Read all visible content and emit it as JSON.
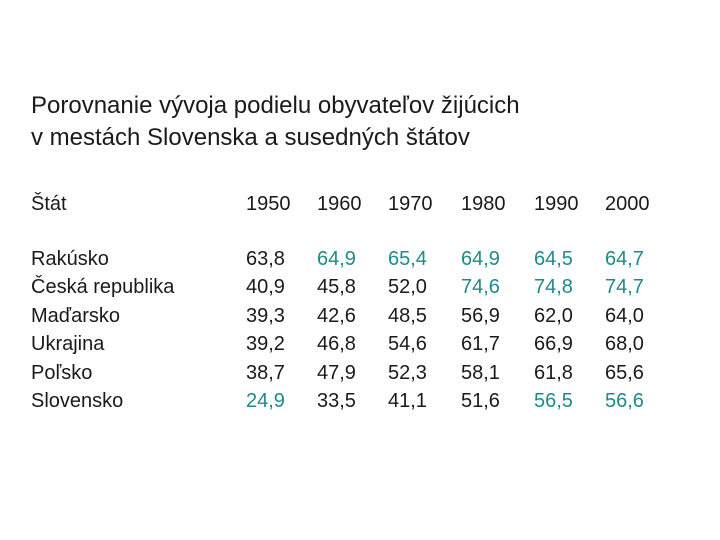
{
  "title": {
    "line1": "Porovnanie vývoja podielu obyvateľov žijúcich",
    "line2": "v mestách Slovenska a susedných štátov"
  },
  "colors": {
    "text": "#1a1a1a",
    "highlight": "#1f8a8a"
  },
  "table": {
    "headers": [
      "Štát",
      "1950",
      "1960",
      "1970",
      "1980",
      "1990",
      "2000"
    ],
    "rows": [
      {
        "country": "Rakúsko",
        "values": [
          "63,8",
          "64,9",
          "65,4",
          "64,9",
          "64,5",
          "64,7"
        ],
        "highlight": [
          false,
          true,
          true,
          true,
          true,
          true
        ]
      },
      {
        "country": "Česká republika",
        "values": [
          "40,9",
          "45,8",
          "52,0",
          "74,6",
          "74,8",
          "74,7"
        ],
        "highlight": [
          false,
          false,
          false,
          true,
          true,
          true
        ]
      },
      {
        "country": "Maďarsko",
        "values": [
          "39,3",
          "42,6",
          "48,5",
          "56,9",
          "62,0",
          "64,0"
        ],
        "highlight": [
          false,
          false,
          false,
          false,
          false,
          false
        ]
      },
      {
        "country": "Ukrajina",
        "values": [
          "39,2",
          "46,8",
          "54,6",
          "61,7",
          "66,9",
          "68,0"
        ],
        "highlight": [
          false,
          false,
          false,
          false,
          false,
          false
        ]
      },
      {
        "country": "Poľsko",
        "values": [
          "38,7",
          "47,9",
          "52,3",
          "58,1",
          "61,8",
          "65,6"
        ],
        "highlight": [
          false,
          false,
          false,
          false,
          false,
          false
        ]
      },
      {
        "country": "Slovensko",
        "values": [
          "24,9",
          "33,5",
          "41,1",
          "51,6",
          "56,5",
          "56,6"
        ],
        "highlight": [
          true,
          false,
          false,
          false,
          true,
          true
        ]
      }
    ]
  }
}
